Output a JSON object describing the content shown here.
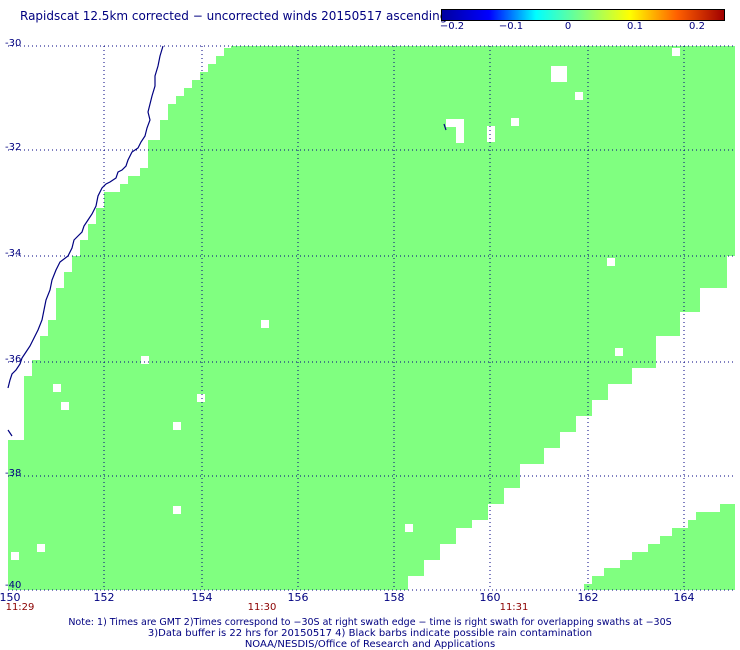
{
  "title": "Rapidscat 12.5km corrected − uncorrected winds 20150517 ascending",
  "colorbar": {
    "labels": [
      "−0.2",
      "−0.1",
      "0",
      "0.1",
      "0.2"
    ],
    "colors": [
      "#0000a0",
      "#0000ff",
      "#00ffff",
      "#80ff80",
      "#ffff00",
      "#ff6000",
      "#a00000"
    ]
  },
  "lat_labels": [
    "-30",
    "-32",
    "-34",
    "-36",
    "-38",
    "-40"
  ],
  "lon_labels": [
    "150",
    "152",
    "154",
    "156",
    "158",
    "160",
    "162",
    "164"
  ],
  "time_labels": [
    "11:29",
    "11:30",
    "11:31"
  ],
  "notes": [
    "Note: 1) Times are GMT 2)Times correspond to −30S at right swath edge − time is right swath for overlapping swaths at −30S",
    "3)Data buffer is 22 hrs for 20150517 4) Black barbs indicate possible rain contamination",
    "NOAA/NESDIS/Office of Research and Applications"
  ],
  "colors": {
    "swath": "#80ff80",
    "coast": "#000080",
    "grid": "#000080"
  }
}
